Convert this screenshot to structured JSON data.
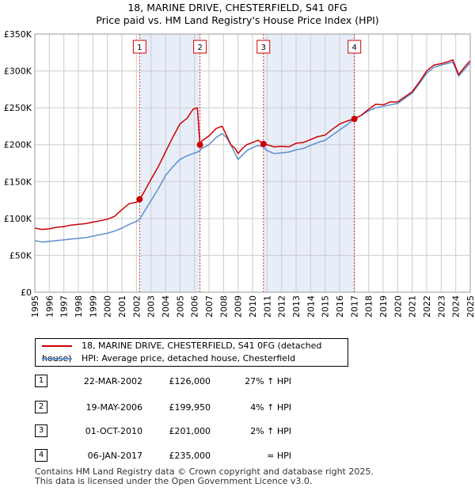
{
  "title_line1": "18, MARINE DRIVE, CHESTERFIELD, S41 0FG",
  "title_line2": "Price paid vs. HM Land Registry's House Price Index (HPI)",
  "legend": {
    "property": "18, MARINE DRIVE, CHESTERFIELD, S41 0FG (detached house)",
    "hpi": "HPI: Average price, detached house, Chesterfield"
  },
  "sales": [
    {
      "num": "1",
      "date": "22-MAR-2002",
      "price": "£126,000",
      "hpi": "27% ↑ HPI"
    },
    {
      "num": "2",
      "date": "19-MAY-2006",
      "price": "£199,950",
      "hpi": "4% ↑ HPI"
    },
    {
      "num": "3",
      "date": "01-OCT-2010",
      "price": "£201,000",
      "hpi": "2% ↑ HPI"
    },
    {
      "num": "4",
      "date": "06-JAN-2017",
      "price": "£235,000",
      "hpi": "≈ HPI"
    }
  ],
  "footer_line1": "Contains HM Land Registry data © Crown copyright and database right 2025.",
  "footer_line2": "This data is licensed under the Open Government Licence v3.0.",
  "colors": {
    "property_line": "#cc0000",
    "hpi_line": "#5b8fd0",
    "shade": "#e8eef9",
    "marker_border": "#cc0000"
  },
  "chart_data": {
    "type": "line",
    "title": "18, MARINE DRIVE, CHESTERFIELD, S41 0FG",
    "subtitle": "Price paid vs. HM Land Registry's House Price Index (HPI)",
    "xlabel": "",
    "ylabel": "",
    "xlim": [
      1995,
      2025
    ],
    "ylim": [
      0,
      350000
    ],
    "grid": true,
    "x_ticks": [
      "1995",
      "1996",
      "1997",
      "1998",
      "1999",
      "2000",
      "2001",
      "2002",
      "2003",
      "2004",
      "2005",
      "2006",
      "2007",
      "2008",
      "2009",
      "2010",
      "2011",
      "2012",
      "2013",
      "2014",
      "2015",
      "2016",
      "2017",
      "2018",
      "2019",
      "2020",
      "2021",
      "2022",
      "2023",
      "2024",
      "2025"
    ],
    "y_ticks": [
      {
        "value": 0,
        "label": "£0"
      },
      {
        "value": 50000,
        "label": "£50K"
      },
      {
        "value": 100000,
        "label": "£100K"
      },
      {
        "value": 150000,
        "label": "£150K"
      },
      {
        "value": 200000,
        "label": "£200K"
      },
      {
        "value": 250000,
        "label": "£250K"
      },
      {
        "value": 300000,
        "label": "£300K"
      },
      {
        "value": 350000,
        "label": "£350K"
      }
    ],
    "shaded_ranges": [
      [
        2002.22,
        2006.38
      ],
      [
        2010.75,
        2017.02
      ]
    ],
    "markers": [
      {
        "label": "1",
        "x": 2002.22,
        "y": 126000
      },
      {
        "label": "2",
        "x": 2006.38,
        "y": 199950
      },
      {
        "label": "3",
        "x": 2010.75,
        "y": 201000
      },
      {
        "label": "4",
        "x": 2017.02,
        "y": 235000
      }
    ],
    "series": [
      {
        "name": "18, MARINE DRIVE, CHESTERFIELD, S41 0FG (detached house)",
        "x": [
          1995.0,
          1995.5,
          1996.0,
          1996.5,
          1997.0,
          1997.5,
          1998.0,
          1998.5,
          1999.0,
          1999.5,
          2000.0,
          2000.5,
          2001.0,
          2001.5,
          2002.0,
          2002.22,
          2002.5,
          2003.0,
          2003.5,
          2004.0,
          2004.5,
          2005.0,
          2005.5,
          2005.9,
          2006.2,
          2006.38,
          2006.5,
          2007.0,
          2007.5,
          2007.9,
          2008.2,
          2008.5,
          2008.8,
          2009.0,
          2009.3,
          2009.6,
          2010.0,
          2010.4,
          2010.75,
          2011.0,
          2011.5,
          2012.0,
          2012.5,
          2013.0,
          2013.5,
          2014.0,
          2014.5,
          2015.0,
          2015.5,
          2016.0,
          2016.5,
          2017.02,
          2017.5,
          2018.0,
          2018.5,
          2019.0,
          2019.5,
          2020.0,
          2020.5,
          2021.0,
          2021.5,
          2022.0,
          2022.5,
          2023.0,
          2023.4,
          2023.8,
          2024.2,
          2024.6,
          2025.0
        ],
        "y": [
          87000,
          85000,
          86000,
          88000,
          89000,
          91000,
          92000,
          93000,
          95000,
          97000,
          99000,
          103000,
          112000,
          120000,
          122000,
          126000,
          135000,
          153000,
          170000,
          190000,
          210000,
          228000,
          236000,
          248000,
          250000,
          199950,
          205000,
          212000,
          222000,
          225000,
          213000,
          200000,
          195000,
          188000,
          195000,
          200000,
          203000,
          206000,
          201000,
          200000,
          197000,
          198000,
          197000,
          202000,
          203000,
          207000,
          211000,
          213000,
          221000,
          228000,
          232000,
          235000,
          240000,
          248000,
          255000,
          254000,
          258000,
          258000,
          265000,
          272000,
          285000,
          300000,
          308000,
          310000,
          312000,
          315000,
          295000,
          305000,
          314000
        ]
      },
      {
        "name": "HPI: Average price, detached house, Chesterfield",
        "x": [
          1995.0,
          1995.5,
          1996.0,
          1996.5,
          1997.0,
          1997.5,
          1998.0,
          1998.5,
          1999.0,
          1999.5,
          2000.0,
          2000.5,
          2001.0,
          2001.5,
          2002.0,
          2002.22,
          2002.5,
          2003.0,
          2003.5,
          2004.0,
          2004.5,
          2005.0,
          2005.5,
          2005.9,
          2006.2,
          2006.38,
          2006.5,
          2007.0,
          2007.5,
          2007.9,
          2008.2,
          2008.5,
          2008.8,
          2009.0,
          2009.3,
          2009.6,
          2010.0,
          2010.4,
          2010.75,
          2011.0,
          2011.5,
          2012.0,
          2012.5,
          2013.0,
          2013.5,
          2014.0,
          2014.5,
          2015.0,
          2015.5,
          2016.0,
          2016.5,
          2017.02,
          2017.5,
          2018.0,
          2018.5,
          2019.0,
          2019.5,
          2020.0,
          2020.5,
          2021.0,
          2021.5,
          2022.0,
          2022.5,
          2023.0,
          2023.4,
          2023.8,
          2024.2,
          2024.6,
          2025.0
        ],
        "y": [
          70000,
          68000,
          69000,
          70000,
          71000,
          72000,
          73000,
          74000,
          76000,
          78000,
          80000,
          83000,
          87000,
          92000,
          96000,
          99000,
          108000,
          124000,
          140000,
          158000,
          170000,
          180000,
          185000,
          188000,
          190000,
          192000,
          195000,
          200000,
          210000,
          215000,
          210000,
          200000,
          188000,
          180000,
          186000,
          192000,
          196000,
          199000,
          197000,
          192000,
          188000,
          189000,
          190000,
          193000,
          195000,
          199000,
          203000,
          206000,
          213000,
          220000,
          227000,
          235000,
          240000,
          246000,
          250000,
          252000,
          254000,
          256000,
          263000,
          270000,
          283000,
          297000,
          305000,
          308000,
          310000,
          312000,
          293000,
          302000,
          311000
        ]
      }
    ]
  }
}
